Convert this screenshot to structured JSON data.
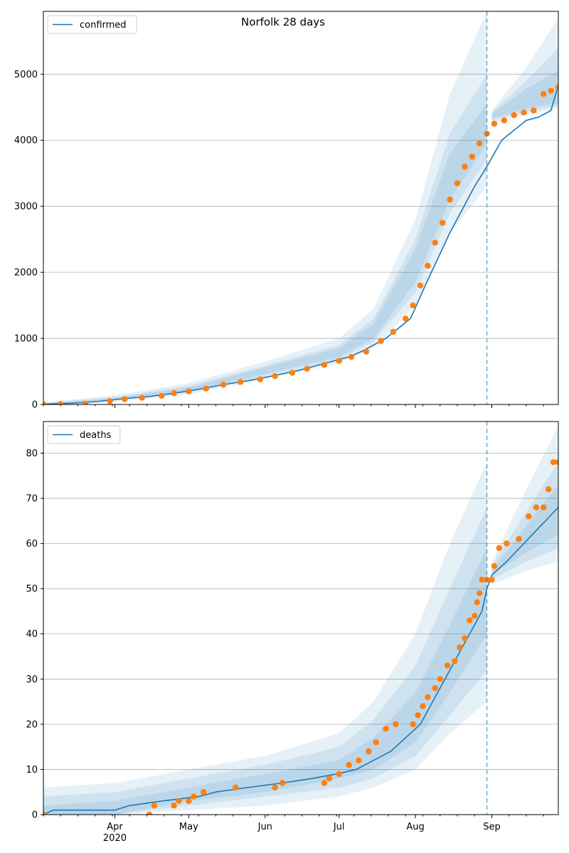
{
  "figure": {
    "title": "Norfolk 28 days"
  },
  "colors": {
    "model_line": "#1f77b4",
    "observed": "#ff7f0e",
    "band": "#1f77b4",
    "grid": "#b0b0b0",
    "axis": "#000000"
  },
  "shared_x": {
    "start_date": "2020-03-03",
    "end_date": "2020-09-28",
    "forecast_date": "2020-08-30",
    "major_ticks": [
      {
        "date": "2020-04-01",
        "label": "Apr",
        "sub": "2020"
      },
      {
        "date": "2020-05-01",
        "label": "May",
        "sub": ""
      },
      {
        "date": "2020-06-01",
        "label": "Jun",
        "sub": ""
      },
      {
        "date": "2020-07-01",
        "label": "Jul",
        "sub": ""
      },
      {
        "date": "2020-08-01",
        "label": "Aug",
        "sub": ""
      },
      {
        "date": "2020-09-01",
        "label": "Sep",
        "sub": ""
      }
    ]
  },
  "chart_data": [
    {
      "type": "line",
      "legend": "confirmed",
      "legend_position": "top-left",
      "grid": "horizontal",
      "ylim": [
        0,
        5950
      ],
      "yticks": [
        0,
        1000,
        2000,
        3000,
        4000,
        5000
      ],
      "model_line": [
        [
          "2020-03-03",
          5
        ],
        [
          "2020-03-15",
          20
        ],
        [
          "2020-03-25",
          45
        ],
        [
          "2020-04-05",
          90
        ],
        [
          "2020-04-15",
          120
        ],
        [
          "2020-04-25",
          170
        ],
        [
          "2020-05-05",
          230
        ],
        [
          "2020-05-15",
          300
        ],
        [
          "2020-05-25",
          360
        ],
        [
          "2020-06-05",
          440
        ],
        [
          "2020-06-15",
          520
        ],
        [
          "2020-06-25",
          620
        ],
        [
          "2020-07-05",
          720
        ],
        [
          "2020-07-10",
          800
        ],
        [
          "2020-07-20",
          1000
        ],
        [
          "2020-07-30",
          1300
        ],
        [
          "2020-08-05",
          1800
        ],
        [
          "2020-08-15",
          2600
        ],
        [
          "2020-08-25",
          3300
        ],
        [
          "2020-08-30",
          3600
        ],
        [
          "2020-09-05",
          4000
        ],
        [
          "2020-09-10",
          4150
        ],
        [
          "2020-09-15",
          4300
        ],
        [
          "2020-09-20",
          4350
        ],
        [
          "2020-09-25",
          4450
        ],
        [
          "2020-09-28",
          4830
        ]
      ],
      "bands": [
        {
          "label": "outer",
          "points": [
            [
              "2020-03-03",
              0,
              30
            ],
            [
              "2020-04-01",
              40,
              140
            ],
            [
              "2020-05-01",
              150,
              320
            ],
            [
              "2020-06-01",
              380,
              650
            ],
            [
              "2020-07-01",
              620,
              1000
            ],
            [
              "2020-07-15",
              850,
              1450
            ],
            [
              "2020-08-01",
              1500,
              2800
            ],
            [
              "2020-08-15",
              2600,
              4700
            ],
            [
              "2020-08-30",
              3300,
              5950
            ],
            [
              "2020-09-01",
              4250,
              4450
            ],
            [
              "2020-09-15",
              4380,
              5100
            ],
            [
              "2020-09-28",
              4480,
              5850
            ]
          ]
        },
        {
          "label": "middle",
          "points": [
            [
              "2020-03-03",
              2,
              20
            ],
            [
              "2020-04-01",
              60,
              115
            ],
            [
              "2020-05-01",
              180,
              280
            ],
            [
              "2020-06-01",
              430,
              590
            ],
            [
              "2020-07-01",
              680,
              900
            ],
            [
              "2020-07-15",
              950,
              1300
            ],
            [
              "2020-08-01",
              1700,
              2500
            ],
            [
              "2020-08-15",
              2900,
              4100
            ],
            [
              "2020-08-30",
              3700,
              5000
            ],
            [
              "2020-09-01",
              4300,
              4420
            ],
            [
              "2020-09-15",
              4430,
              4900
            ],
            [
              "2020-09-28",
              4520,
              5400
            ]
          ]
        },
        {
          "label": "inner",
          "points": [
            [
              "2020-03-03",
              3,
              12
            ],
            [
              "2020-04-01",
              75,
              100
            ],
            [
              "2020-05-01",
              200,
              255
            ],
            [
              "2020-06-01",
              460,
              560
            ],
            [
              "2020-07-01",
              720,
              850
            ],
            [
              "2020-07-15",
              1000,
              1220
            ],
            [
              "2020-08-01",
              1850,
              2350
            ],
            [
              "2020-08-15",
              3100,
              3800
            ],
            [
              "2020-08-30",
              3950,
              4550
            ],
            [
              "2020-09-01",
              4320,
              4400
            ],
            [
              "2020-09-15",
              4480,
              4780
            ],
            [
              "2020-09-28",
              4560,
              5050
            ]
          ]
        }
      ],
      "observed": [
        [
          "2020-03-03",
          2
        ],
        [
          "2020-03-10",
          5
        ],
        [
          "2020-03-20",
          10
        ],
        [
          "2020-03-30",
          50
        ],
        [
          "2020-04-05",
          80
        ],
        [
          "2020-04-12",
          100
        ],
        [
          "2020-04-20",
          130
        ],
        [
          "2020-04-25",
          170
        ],
        [
          "2020-05-01",
          200
        ],
        [
          "2020-05-08",
          240
        ],
        [
          "2020-05-15",
          300
        ],
        [
          "2020-05-22",
          340
        ],
        [
          "2020-05-30",
          380
        ],
        [
          "2020-06-05",
          430
        ],
        [
          "2020-06-12",
          480
        ],
        [
          "2020-06-18",
          540
        ],
        [
          "2020-06-25",
          600
        ],
        [
          "2020-07-01",
          660
        ],
        [
          "2020-07-06",
          720
        ],
        [
          "2020-07-12",
          800
        ],
        [
          "2020-07-18",
          960
        ],
        [
          "2020-07-23",
          1100
        ],
        [
          "2020-07-28",
          1300
        ],
        [
          "2020-07-31",
          1500
        ],
        [
          "2020-08-03",
          1800
        ],
        [
          "2020-08-06",
          2100
        ],
        [
          "2020-08-09",
          2450
        ],
        [
          "2020-08-12",
          2750
        ],
        [
          "2020-08-15",
          3100
        ],
        [
          "2020-08-18",
          3350
        ],
        [
          "2020-08-21",
          3600
        ],
        [
          "2020-08-24",
          3750
        ],
        [
          "2020-08-27",
          3950
        ],
        [
          "2020-08-30",
          4100
        ],
        [
          "2020-09-02",
          4250
        ],
        [
          "2020-09-06",
          4300
        ],
        [
          "2020-09-10",
          4380
        ],
        [
          "2020-09-14",
          4420
        ],
        [
          "2020-09-18",
          4450
        ],
        [
          "2020-09-22",
          4700
        ],
        [
          "2020-09-25",
          4750
        ],
        [
          "2020-09-28",
          4800
        ]
      ]
    },
    {
      "type": "line",
      "legend": "deaths",
      "legend_position": "top-left",
      "grid": "horizontal",
      "ylim": [
        0,
        87
      ],
      "yticks": [
        0,
        10,
        20,
        30,
        40,
        50,
        60,
        70,
        80
      ],
      "model_line": [
        [
          "2020-03-03",
          0
        ],
        [
          "2020-03-07",
          1
        ],
        [
          "2020-04-01",
          1
        ],
        [
          "2020-04-07",
          2
        ],
        [
          "2020-04-20",
          3
        ],
        [
          "2020-05-05",
          4
        ],
        [
          "2020-05-12",
          5
        ],
        [
          "2020-05-25",
          6
        ],
        [
          "2020-06-08",
          7
        ],
        [
          "2020-06-20",
          8
        ],
        [
          "2020-06-30",
          9
        ],
        [
          "2020-07-08",
          10
        ],
        [
          "2020-07-15",
          12
        ],
        [
          "2020-07-22",
          14
        ],
        [
          "2020-07-28",
          17
        ],
        [
          "2020-08-03",
          20
        ],
        [
          "2020-08-08",
          25
        ],
        [
          "2020-08-13",
          30
        ],
        [
          "2020-08-18",
          35
        ],
        [
          "2020-08-23",
          40
        ],
        [
          "2020-08-28",
          45
        ],
        [
          "2020-08-30",
          50
        ],
        [
          "2020-09-01",
          53
        ],
        [
          "2020-09-07",
          56
        ],
        [
          "2020-09-14",
          60
        ],
        [
          "2020-09-21",
          64
        ],
        [
          "2020-09-28",
          68
        ]
      ],
      "bands": [
        {
          "label": "outer",
          "points": [
            [
              "2020-03-03",
              0,
              6
            ],
            [
              "2020-04-01",
              0,
              7
            ],
            [
              "2020-05-01",
              1,
              10
            ],
            [
              "2020-06-01",
              2,
              13
            ],
            [
              "2020-07-01",
              4,
              18
            ],
            [
              "2020-07-15",
              6,
              25
            ],
            [
              "2020-08-01",
              10,
              40
            ],
            [
              "2020-08-15",
              18,
              60
            ],
            [
              "2020-08-30",
              25,
              78
            ],
            [
              "2020-09-01",
              51,
              56
            ],
            [
              "2020-09-15",
              54,
              72
            ],
            [
              "2020-09-28",
              56,
              86
            ]
          ]
        },
        {
          "label": "middle",
          "points": [
            [
              "2020-03-03",
              0,
              4
            ],
            [
              "2020-04-01",
              0,
              5
            ],
            [
              "2020-05-01",
              2,
              8
            ],
            [
              "2020-06-01",
              4,
              11
            ],
            [
              "2020-07-01",
              6,
              15
            ],
            [
              "2020-07-15",
              8,
              21
            ],
            [
              "2020-08-01",
              13,
              33
            ],
            [
              "2020-08-15",
              22,
              50
            ],
            [
              "2020-08-30",
              32,
              68
            ],
            [
              "2020-09-01",
              52,
              55
            ],
            [
              "2020-09-15",
              56,
              67
            ],
            [
              "2020-09-28",
              59,
              78
            ]
          ]
        },
        {
          "label": "inner",
          "points": [
            [
              "2020-03-03",
              0,
              2
            ],
            [
              "2020-04-01",
              0,
              3
            ],
            [
              "2020-05-01",
              3,
              6
            ],
            [
              "2020-06-01",
              5,
              9
            ],
            [
              "2020-07-01",
              8,
              12
            ],
            [
              "2020-07-15",
              10,
              17
            ],
            [
              "2020-08-01",
              16,
              27
            ],
            [
              "2020-08-15",
              27,
              42
            ],
            [
              "2020-08-30",
              40,
              59
            ],
            [
              "2020-09-01",
              53,
              54
            ],
            [
              "2020-09-15",
              58,
              64
            ],
            [
              "2020-09-28",
              62,
              73
            ]
          ]
        }
      ],
      "observed": [
        [
          "2020-03-03",
          0
        ],
        [
          "2020-04-15",
          0
        ],
        [
          "2020-04-17",
          2
        ],
        [
          "2020-04-25",
          2
        ],
        [
          "2020-04-27",
          3
        ],
        [
          "2020-05-01",
          3
        ],
        [
          "2020-05-03",
          4
        ],
        [
          "2020-05-07",
          5
        ],
        [
          "2020-05-20",
          6
        ],
        [
          "2020-06-05",
          6
        ],
        [
          "2020-06-08",
          7
        ],
        [
          "2020-06-25",
          7
        ],
        [
          "2020-06-27",
          8
        ],
        [
          "2020-07-01",
          9
        ],
        [
          "2020-07-05",
          11
        ],
        [
          "2020-07-09",
          12
        ],
        [
          "2020-07-13",
          14
        ],
        [
          "2020-07-16",
          16
        ],
        [
          "2020-07-20",
          19
        ],
        [
          "2020-07-24",
          20
        ],
        [
          "2020-07-31",
          20
        ],
        [
          "2020-08-02",
          22
        ],
        [
          "2020-08-04",
          24
        ],
        [
          "2020-08-06",
          26
        ],
        [
          "2020-08-09",
          28
        ],
        [
          "2020-08-11",
          30
        ],
        [
          "2020-08-14",
          33
        ],
        [
          "2020-08-17",
          34
        ],
        [
          "2020-08-19",
          37
        ],
        [
          "2020-08-21",
          39
        ],
        [
          "2020-08-23",
          43
        ],
        [
          "2020-08-25",
          44
        ],
        [
          "2020-08-26",
          47
        ],
        [
          "2020-08-27",
          49
        ],
        [
          "2020-08-28",
          52
        ],
        [
          "2020-08-30",
          52
        ],
        [
          "2020-09-01",
          52
        ],
        [
          "2020-09-02",
          55
        ],
        [
          "2020-09-04",
          59
        ],
        [
          "2020-09-07",
          60
        ],
        [
          "2020-09-12",
          61
        ],
        [
          "2020-09-16",
          66
        ],
        [
          "2020-09-19",
          68
        ],
        [
          "2020-09-22",
          68
        ],
        [
          "2020-09-24",
          72
        ],
        [
          "2020-09-26",
          78
        ],
        [
          "2020-09-28",
          78
        ]
      ]
    }
  ]
}
